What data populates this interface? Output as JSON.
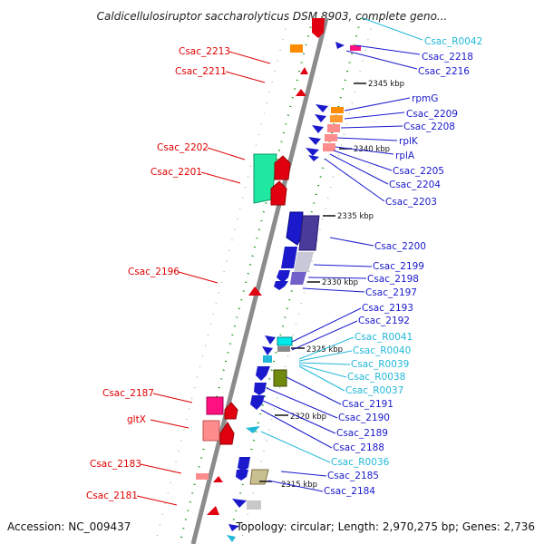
{
  "header": {
    "title": "Caldicellulosiruptor saccharolyticus DSM 8903, complete geno..."
  },
  "footer": {
    "accession": "Accession: NC_009437",
    "topology": "Topology: circular; Length: 2,970,275 bp; Genes: 2,736"
  },
  "colors": {
    "left_label": "#e00000",
    "right_label": "#1a1acc",
    "rna_label": "#22b8d8",
    "backbone": "#8c8c8c",
    "tick_mark": "#008800"
  },
  "scale_ticks": [
    "2345 kbp",
    "2340 kbp",
    "2335 kbp",
    "2330 kbp",
    "2325 kbp",
    "2320 kbp",
    "2315 kbp"
  ],
  "left_labels": [
    "Csac_2213",
    "Csac_2211",
    "Csac_2202",
    "Csac_2201",
    "Csac_2196",
    "Csac_2187",
    "gltX",
    "Csac_2183",
    "Csac_2181"
  ],
  "right_labels": [
    {
      "text": "Csac_R0042",
      "kind": "rna"
    },
    {
      "text": "Csac_2218",
      "kind": "gene"
    },
    {
      "text": "Csac_2216",
      "kind": "gene"
    },
    {
      "text": "rpmG",
      "kind": "gene"
    },
    {
      "text": "Csac_2209",
      "kind": "gene"
    },
    {
      "text": "Csac_2208",
      "kind": "gene"
    },
    {
      "text": "rplK",
      "kind": "gene"
    },
    {
      "text": "rplA",
      "kind": "gene"
    },
    {
      "text": "Csac_2205",
      "kind": "gene"
    },
    {
      "text": "Csac_2204",
      "kind": "gene"
    },
    {
      "text": "Csac_2203",
      "kind": "gene"
    },
    {
      "text": "Csac_2200",
      "kind": "gene"
    },
    {
      "text": "Csac_2199",
      "kind": "gene"
    },
    {
      "text": "Csac_2198",
      "kind": "gene"
    },
    {
      "text": "Csac_2197",
      "kind": "gene"
    },
    {
      "text": "Csac_2193",
      "kind": "gene"
    },
    {
      "text": "Csac_2192",
      "kind": "gene"
    },
    {
      "text": "Csac_R0041",
      "kind": "rna"
    },
    {
      "text": "Csac_R0040",
      "kind": "rna"
    },
    {
      "text": "Csac_R0039",
      "kind": "rna"
    },
    {
      "text": "Csac_R0038",
      "kind": "rna"
    },
    {
      "text": "Csac_R0037",
      "kind": "rna"
    },
    {
      "text": "Csac_2191",
      "kind": "gene"
    },
    {
      "text": "Csac_2190",
      "kind": "gene"
    },
    {
      "text": "Csac_2189",
      "kind": "gene"
    },
    {
      "text": "Csac_2188",
      "kind": "gene"
    },
    {
      "text": "Csac_R0036",
      "kind": "rna"
    },
    {
      "text": "Csac_2185",
      "kind": "gene"
    },
    {
      "text": "Csac_2184",
      "kind": "gene"
    }
  ]
}
